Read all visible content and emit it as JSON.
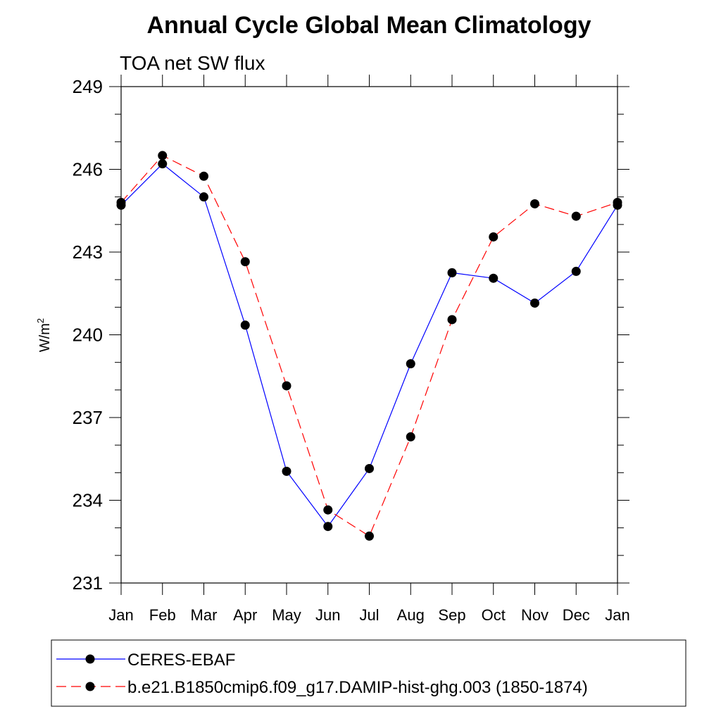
{
  "chart_data": {
    "type": "line",
    "title": "Annual Cycle Global Mean Climatology",
    "subtitle": "TOA net SW flux",
    "ylabel_base": "W/m",
    "ylabel_sup": "2",
    "categories": [
      "Jan",
      "Feb",
      "Mar",
      "Apr",
      "May",
      "Jun",
      "Jul",
      "Aug",
      "Sep",
      "Oct",
      "Nov",
      "Dec",
      "Jan"
    ],
    "ylim": [
      231,
      249
    ],
    "yticks": [
      231,
      234,
      237,
      240,
      243,
      246,
      249
    ],
    "yminor_step": 1,
    "series": [
      {
        "name": "CERES-EBAF",
        "color": "#0000ff",
        "dash": "solid",
        "values": [
          244.7,
          246.2,
          245.0,
          240.35,
          235.05,
          233.05,
          235.15,
          238.95,
          242.25,
          242.05,
          241.15,
          242.3,
          244.7
        ]
      },
      {
        "name": "b.e21.B1850cmip6.f09_g17.DAMIP-hist-ghg.003 (1850-1874)",
        "color": "#ff0000",
        "dash": "dashed",
        "values": [
          244.8,
          246.5,
          245.75,
          242.65,
          238.15,
          233.65,
          232.7,
          236.3,
          240.55,
          243.55,
          244.75,
          244.3,
          244.8
        ]
      }
    ],
    "legend_position": "bottom"
  }
}
